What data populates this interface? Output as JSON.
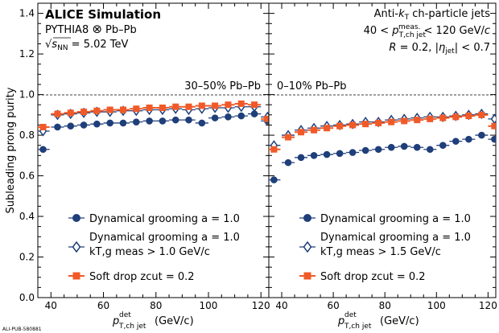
{
  "figure": {
    "watermark": "ALI-PUB-580881",
    "ylabel": "Subleading prong purity",
    "xlabel_main": "p",
    "xlabel_sup": "det",
    "xlabel_sub": "T,ch jet",
    "xlabel_unit": "(GeV/c)",
    "header": {
      "experiment": "ALICE Simulation",
      "generator": "PYTHIA8 ⊗ Pb–Pb",
      "energy": "√sNN = 5.02 TeV",
      "jet_type": "Anti-kT ch-particle jets",
      "pt_range": "40 < pT,ch jet meas. < 120 GeV/c",
      "radius_eta": "R = 0.2, |ηjet| < 0.7"
    }
  },
  "chart_data": [
    {
      "type": "scatter",
      "panel_label": "30–50% Pb–Pb",
      "xlim": [
        35,
        123
      ],
      "ylim": [
        0.0,
        1.45
      ],
      "xticks": [
        40,
        60,
        80,
        100,
        120
      ],
      "yticks": [
        0.0,
        0.2,
        0.4,
        0.6,
        0.8,
        1.0,
        1.2,
        1.4
      ],
      "reference_line": 1.0,
      "legend": [
        {
          "label": "Dynamical grooming a = 1.0",
          "sub": ""
        },
        {
          "label": "Dynamical grooming a = 1.0",
          "sub": "kT,g meas > 1.0 GeV/c"
        },
        {
          "label": "Soft drop zcut = 0.2",
          "sub": ""
        }
      ],
      "series": [
        {
          "name": "Dynamical grooming a = 1.0",
          "marker": "filled-circle",
          "color": "#1f3f7a",
          "x": [
            37,
            42.5,
            47.5,
            52.5,
            57.5,
            62.5,
            67.5,
            72.5,
            77.5,
            82.5,
            87.5,
            92.5,
            97.5,
            102.5,
            107.5,
            112.5,
            117.5,
            122.5
          ],
          "y": [
            0.73,
            0.84,
            0.845,
            0.85,
            0.855,
            0.86,
            0.86,
            0.865,
            0.87,
            0.87,
            0.875,
            0.875,
            0.86,
            0.885,
            0.89,
            0.895,
            0.905,
            0.87
          ]
        },
        {
          "name": "Dynamical grooming a = 1.0, kT,g meas > 1.0 GeV/c",
          "marker": "open-diamond",
          "color": "#1f3f7a",
          "x": [
            37,
            42.5,
            47.5,
            52.5,
            57.5,
            62.5,
            67.5,
            72.5,
            77.5,
            82.5,
            87.5,
            92.5,
            97.5,
            102.5,
            107.5,
            112.5,
            117.5,
            122.5
          ],
          "y": [
            0.82,
            0.9,
            0.905,
            0.91,
            0.915,
            0.915,
            0.92,
            0.92,
            0.925,
            0.925,
            0.93,
            0.925,
            0.93,
            0.935,
            0.935,
            0.94,
            0.94,
            0.89
          ]
        },
        {
          "name": "Soft drop zcut = 0.2",
          "marker": "filled-square",
          "color": "#f05a28",
          "x": [
            37,
            42.5,
            47.5,
            52.5,
            57.5,
            62.5,
            67.5,
            72.5,
            77.5,
            82.5,
            87.5,
            92.5,
            97.5,
            102.5,
            107.5,
            112.5,
            117.5,
            122.5
          ],
          "y": [
            0.84,
            0.905,
            0.91,
            0.915,
            0.92,
            0.925,
            0.925,
            0.93,
            0.935,
            0.935,
            0.94,
            0.94,
            0.945,
            0.945,
            0.95,
            0.955,
            0.95,
            0.88
          ]
        }
      ]
    },
    {
      "type": "scatter",
      "panel_label": "0–10% Pb–Pb",
      "xlim": [
        35,
        123
      ],
      "ylim": [
        0.0,
        1.45
      ],
      "xticks": [
        40,
        60,
        80,
        100,
        120
      ],
      "yticks": [
        0.0,
        0.2,
        0.4,
        0.6,
        0.8,
        1.0,
        1.2,
        1.4
      ],
      "reference_line": 1.0,
      "legend": [
        {
          "label": "Dynamical grooming a = 1.0",
          "sub": ""
        },
        {
          "label": "Dynamical grooming a = 1.0",
          "sub": "kT,g meas > 1.5 GeV/c"
        },
        {
          "label": "Soft drop zcut = 0.2",
          "sub": ""
        }
      ],
      "series": [
        {
          "name": "Dynamical grooming a = 1.0",
          "marker": "filled-circle",
          "color": "#1f3f7a",
          "x": [
            37,
            42.5,
            47.5,
            52.5,
            57.5,
            62.5,
            67.5,
            72.5,
            77.5,
            82.5,
            87.5,
            92.5,
            97.5,
            102.5,
            107.5,
            112.5,
            117.5,
            122.5
          ],
          "y": [
            0.58,
            0.665,
            0.69,
            0.7,
            0.705,
            0.71,
            0.715,
            0.725,
            0.73,
            0.74,
            0.745,
            0.74,
            0.73,
            0.75,
            0.77,
            0.78,
            0.8,
            0.78
          ]
        },
        {
          "name": "Dynamical grooming a = 1.0, kT,g meas > 1.5 GeV/c",
          "marker": "open-diamond",
          "color": "#1f3f7a",
          "x": [
            37,
            42.5,
            47.5,
            52.5,
            57.5,
            62.5,
            67.5,
            72.5,
            77.5,
            82.5,
            87.5,
            92.5,
            97.5,
            102.5,
            107.5,
            112.5,
            117.5,
            122.5
          ],
          "y": [
            0.75,
            0.8,
            0.825,
            0.835,
            0.845,
            0.85,
            0.855,
            0.865,
            0.865,
            0.875,
            0.88,
            0.885,
            0.89,
            0.89,
            0.895,
            0.9,
            0.905,
            0.88
          ]
        },
        {
          "name": "Soft drop zcut = 0.2",
          "marker": "filled-square",
          "color": "#f05a28",
          "x": [
            37,
            42.5,
            47.5,
            52.5,
            57.5,
            62.5,
            67.5,
            72.5,
            77.5,
            82.5,
            87.5,
            92.5,
            97.5,
            102.5,
            107.5,
            112.5,
            117.5,
            122.5
          ],
          "y": [
            0.73,
            0.79,
            0.815,
            0.825,
            0.835,
            0.845,
            0.85,
            0.855,
            0.86,
            0.865,
            0.87,
            0.875,
            0.88,
            0.885,
            0.89,
            0.895,
            0.9,
            0.845
          ]
        }
      ]
    }
  ]
}
